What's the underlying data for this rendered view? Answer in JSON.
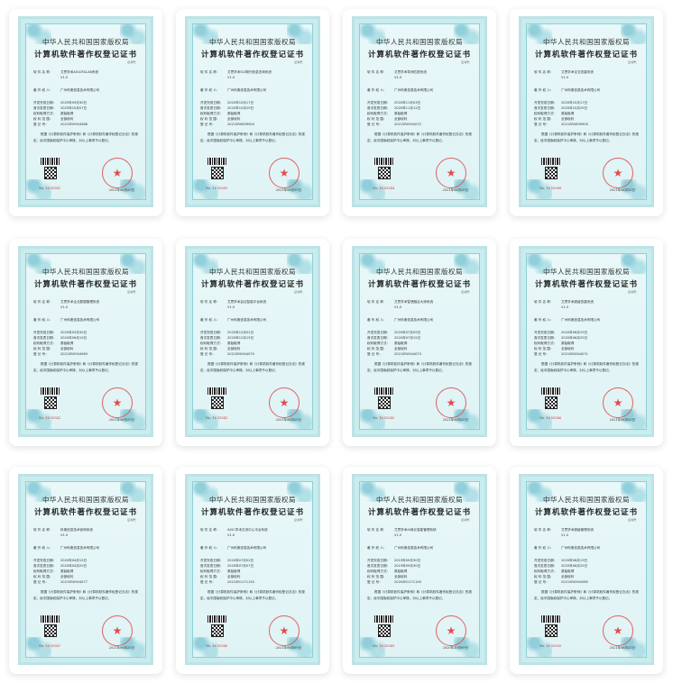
{
  "labels": {
    "title1": "中华人民共和国国家版权局",
    "title2": "计算机软件著作权登记证书",
    "certno_label": "证书号：",
    "name": "软 件 名 称：",
    "owner": "著 作 权 人：",
    "dev_date": "开发完成日期：",
    "pub_date": "首次发表日期：",
    "method": "权利取得方式：",
    "scope": "权 利 范 围：",
    "reg": "登 记 号：",
    "para": "根据《计算机软件保护条例》和《计算机软件著作权登记办法》的规定，经中国版权保护中心审核，对以上事项予以登记。",
    "no_prefix": "No."
  },
  "colors": {
    "background": "#c9ecee",
    "stamp": "#e04848"
  },
  "certificates": [
    {
      "name": "艾思学术AIGCRSLAB系统",
      "version": "V1.0",
      "owner": "广州科奥信息技术有限公司",
      "dev_date": "2020年09月30日",
      "pub_date": "2020年10月07日",
      "method": "原始取得",
      "scope": "全部权利",
      "reg": "2021SR0944068",
      "no": "16 55541",
      "stamp_date": "2021年06月25日"
    },
    {
      "name": "艾思学术SCI期刊信息查询系统",
      "version": "V1.0",
      "owner": "广州科奥信息技术有限公司",
      "dev_date": "2020年10月17日",
      "pub_date": "2020年10月29日",
      "method": "原始取得",
      "scope": "全部权利",
      "reg": "2021SR0839904",
      "no": "16 10065",
      "stamp_date": "2021年06月15日"
    },
    {
      "name": "艾思学术导师匹配系统",
      "version": "V1.0",
      "owner": "广州科奥信息技术有限公司",
      "dev_date": "2020年11月03日",
      "pub_date": "2020年11月12日",
      "method": "原始取得",
      "scope": "全部权利",
      "reg": "2021SR0944072",
      "no": "16 55544",
      "stamp_date": "2021年06月25日"
    },
    {
      "name": "艾思学术论文查重系统",
      "version": "V1.0",
      "owner": "广州科奥信息技术有限公司",
      "dev_date": "2020年10月17日",
      "pub_date": "2020年10月29日",
      "method": "原始取得",
      "scope": "全部权利",
      "reg": "2021SR0839905",
      "no": "16 10066",
      "stamp_date": "2021年06月15日"
    },
    {
      "name": "艾思学术企业数据管理系统",
      "version": "V1.0",
      "owner": "广州科奥信息技术有限公司",
      "dev_date": "2020年05月30日",
      "pub_date": "2020年06月10日",
      "method": "原始取得",
      "scope": "全部权利",
      "reg": "2021SR0944069",
      "no": "16 55542",
      "stamp_date": "2021年06月25日"
    },
    {
      "name": "艾思学术会议智能平台系统",
      "version": "V1.0",
      "owner": "广州科奥信息技术有限公司",
      "dev_date": "2020年12月02日",
      "pub_date": "2020年12月15日",
      "method": "原始取得",
      "scope": "全部权利",
      "reg": "2021SR0944070",
      "no": "16 55543",
      "stamp_date": "2021年06月25日"
    },
    {
      "name": "艾思学术智慧融合大师系统",
      "version": "V1.0",
      "owner": "广州科奥信息技术有限公司",
      "dev_date": "2020年07月09日",
      "pub_date": "2020年07月15日",
      "method": "原始取得",
      "scope": "全部权利",
      "reg": "2021SR0944073",
      "no": "16 55545",
      "stamp_date": "2021年06月25日"
    },
    {
      "name": "艾思学术超级查重系统",
      "version": "V1.0",
      "owner": "广州科奥信息技术有限公司",
      "dev_date": "2020年06月19日",
      "pub_date": "2020年06月25日",
      "method": "原始取得",
      "scope": "全部权利",
      "reg": "2021SR0944071",
      "no": "16 55546",
      "stamp_date": "2021年06月25日"
    },
    {
      "name": "科奥信息技术官网系统",
      "version": "V1.0",
      "owner": "广州科奥信息技术有限公司",
      "dev_date": "2020年04月15日",
      "pub_date": "2020年04月20日",
      "method": "原始取得",
      "scope": "全部权利",
      "reg": "2021SR0944077",
      "no": "16 55547",
      "stamp_date": "2021年06月25日"
    },
    {
      "name": "AIGC学术交流中心平台系统",
      "version": "V1.0",
      "owner": "广州科奥信息技术有限公司",
      "dev_date": "2020年07月02日",
      "pub_date": "2020年07月07日",
      "method": "原始取得",
      "scope": "全部权利",
      "reg": "2021SR1171150",
      "no": "16 55548",
      "stamp_date": "2021年08月09日"
    },
    {
      "name": "艾思学术AI商业智能管理系统",
      "version": "V1.0",
      "owner": "广州科奥信息技术有限公司",
      "dev_date": "2019年09月30日",
      "pub_date": "2019年09月30日",
      "method": "原始取得",
      "scope": "全部权利",
      "reg": "2020SR1171150",
      "no": "16 55549",
      "stamp_date": "2020年10月09日"
    },
    {
      "name": "艾思学术超级管理系统",
      "version": "V1.0",
      "owner": "广州科奥信息技术有限公司",
      "dev_date": "2020年06月19日",
      "pub_date": "2020年06月25日",
      "method": "原始取得",
      "scope": "全部权利",
      "reg": "2021SR0944065",
      "no": "16 55550",
      "stamp_date": "2021年06月25日"
    }
  ]
}
